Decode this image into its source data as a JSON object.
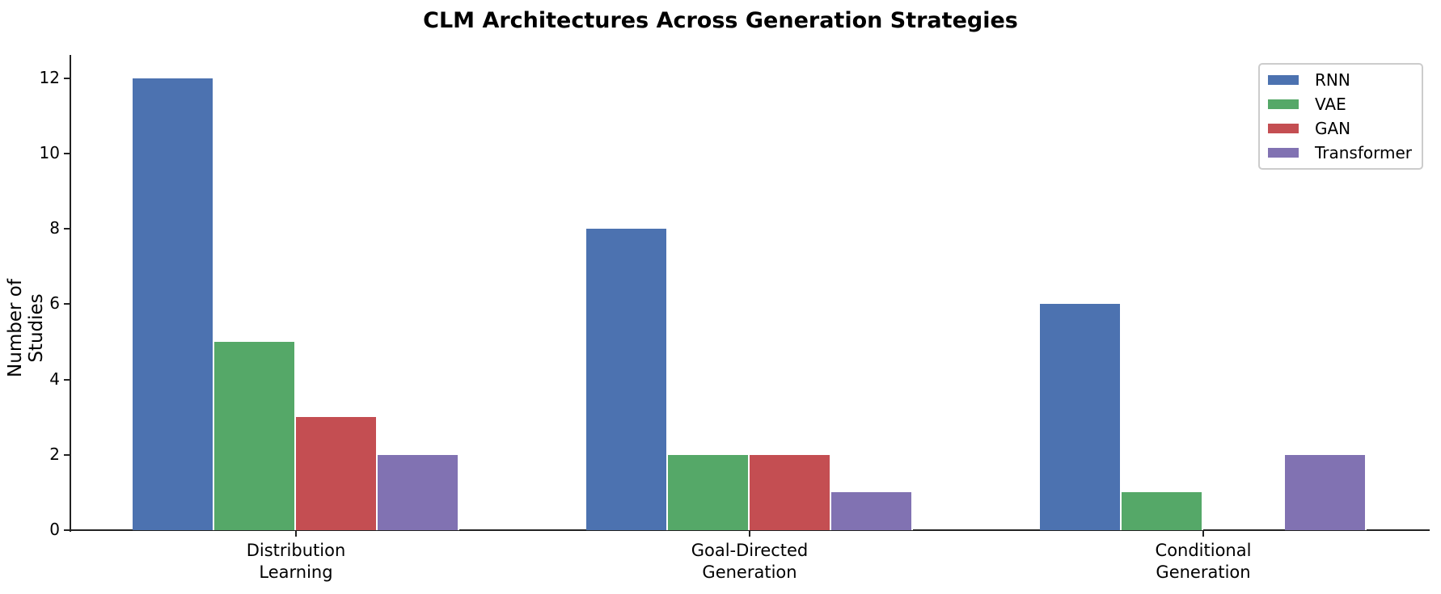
{
  "chart_data": {
    "type": "bar",
    "title": "CLM Architectures Across Generation Strategies",
    "xlabel": "",
    "ylabel": "Number of Studies",
    "categories": [
      "Distribution\nLearning",
      "Goal-Directed\nGeneration",
      "Conditional\nGeneration"
    ],
    "series": [
      {
        "name": "RNN",
        "color": "#4c72b0",
        "values": [
          12,
          8,
          6
        ]
      },
      {
        "name": "VAE",
        "color": "#55a868",
        "values": [
          5,
          2,
          1
        ]
      },
      {
        "name": "GAN",
        "color": "#c44e52",
        "values": [
          3,
          2,
          0
        ]
      },
      {
        "name": "Transformer",
        "color": "#8172b2",
        "values": [
          2,
          1,
          2
        ]
      }
    ],
    "ylim": [
      0,
      12.6
    ],
    "yticks": [
      "0",
      "2",
      "4",
      "6",
      "8",
      "10",
      "12"
    ],
    "grid": false,
    "legend_position": "upper right"
  }
}
